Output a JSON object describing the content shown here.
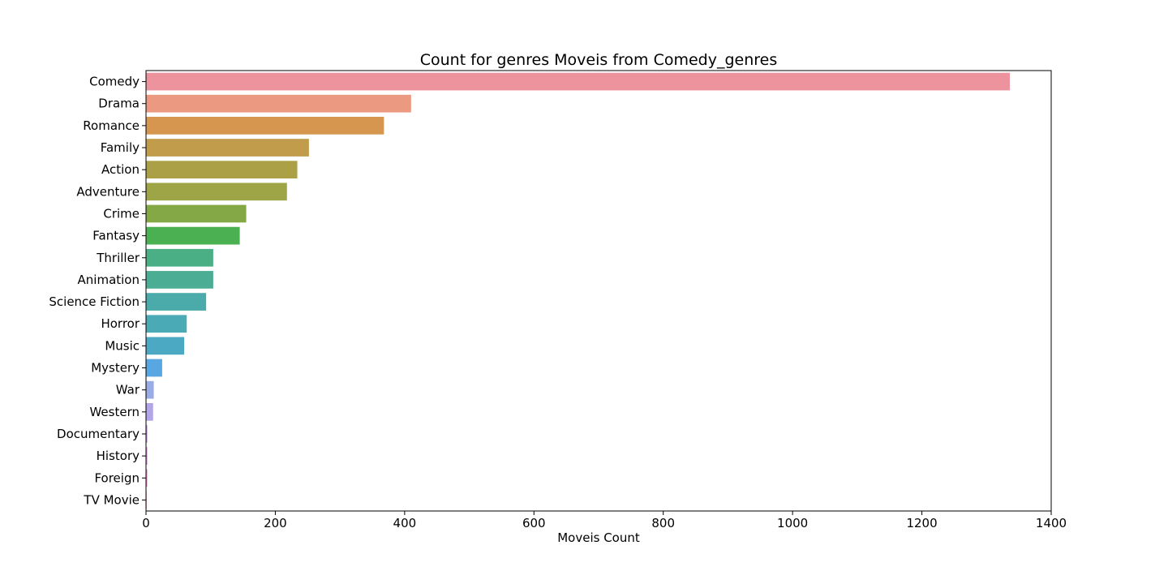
{
  "chart_data": {
    "type": "bar",
    "orientation": "horizontal",
    "title": "Count for genres Moveis from Comedy_genres",
    "xlabel": "Moveis Count",
    "ylabel": "",
    "xlim": [
      0,
      1400
    ],
    "xticks": [
      0,
      200,
      400,
      600,
      800,
      1000,
      1200,
      1400
    ],
    "grid": false,
    "categories": [
      "Comedy",
      "Drama",
      "Romance",
      "Family",
      "Action",
      "Adventure",
      "Crime",
      "Fantasy",
      "Thriller",
      "Animation",
      "Science Fiction",
      "Horror",
      "Music",
      "Mystery",
      "War",
      "Western",
      "Documentary",
      "History",
      "Foreign",
      "TV Movie"
    ],
    "values": [
      1336,
      410,
      368,
      252,
      234,
      218,
      155,
      145,
      104,
      104,
      93,
      63,
      59,
      25,
      12,
      11,
      2,
      2,
      2,
      1
    ],
    "colors": [
      "#ec939e",
      "#eb9981",
      "#d7964f",
      "#c09c4b",
      "#aba046",
      "#9da546",
      "#84a846",
      "#4bb052",
      "#4baf85",
      "#4bae94",
      "#4babaa",
      "#4aaab6",
      "#4ba9c4",
      "#58a7e3",
      "#99ace6",
      "#b2a5e9",
      "#c987e5",
      "#dd84e0",
      "#ea87c9",
      "#ee8ab1"
    ]
  }
}
